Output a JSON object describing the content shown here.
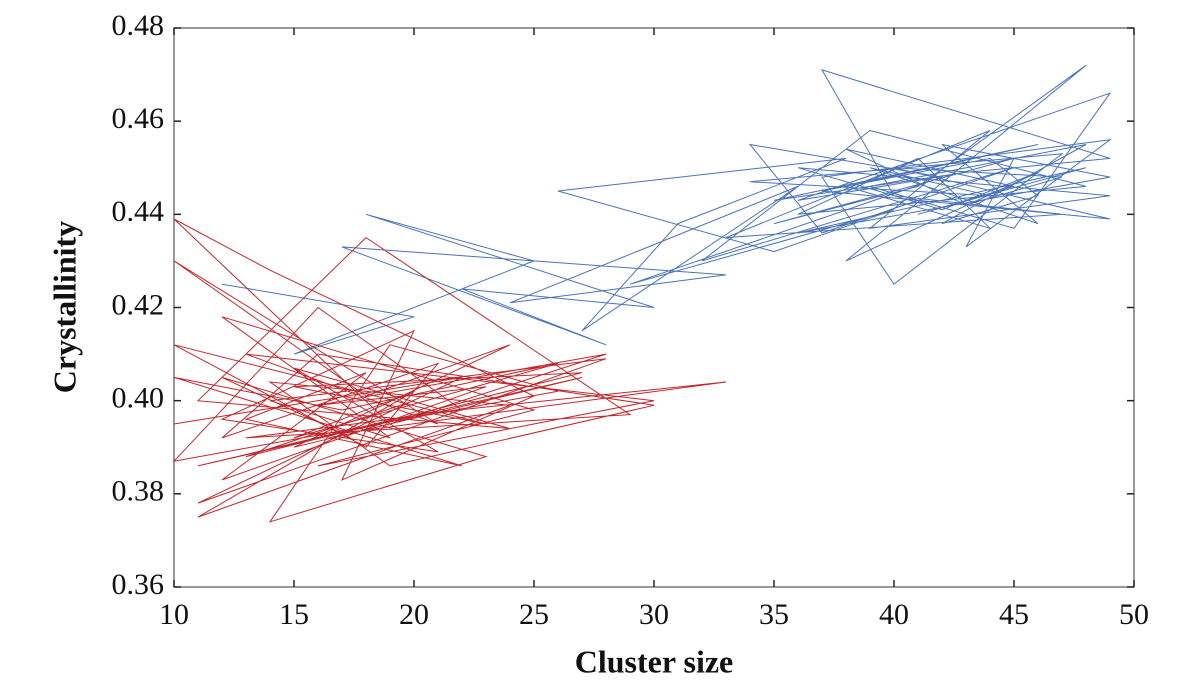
{
  "chart_data": {
    "type": "line",
    "x_label": "Cluster size",
    "y_label": "Crystallinity",
    "xlim": [
      10,
      50
    ],
    "ylim": [
      0.36,
      0.48
    ],
    "xticks": [
      10,
      15,
      20,
      25,
      30,
      35,
      40,
      45,
      50
    ],
    "yticks": [
      0.36,
      0.38,
      {
        "value": 0.4,
        "label": "0.40"
      },
      0.42,
      0.44,
      0.46,
      0.48
    ],
    "series": [
      {
        "color": "#4a73b8",
        "x": [
          12,
          20,
          15,
          25,
          18,
          30,
          22,
          28,
          17,
          33,
          24,
          36,
          27,
          31,
          38,
          26,
          35,
          40,
          29,
          42,
          34,
          37,
          45,
          32,
          39,
          48,
          36,
          41,
          44,
          38,
          46,
          35,
          43,
          49,
          37,
          40,
          47,
          33,
          44,
          39,
          49,
          36,
          42,
          46,
          38,
          48,
          41,
          35,
          45,
          43,
          49,
          37,
          40,
          47,
          34,
          44,
          39,
          46,
          42,
          49,
          36,
          48,
          41,
          45,
          38,
          43,
          47,
          40,
          49,
          37,
          44,
          46,
          42,
          48,
          39,
          45,
          49,
          36,
          43,
          47
        ],
        "values": [
          0.425,
          0.418,
          0.41,
          0.43,
          0.44,
          0.42,
          0.424,
          0.412,
          0.433,
          0.427,
          0.421,
          0.446,
          0.415,
          0.438,
          0.452,
          0.445,
          0.432,
          0.441,
          0.425,
          0.448,
          0.455,
          0.436,
          0.45,
          0.43,
          0.458,
          0.446,
          0.44,
          0.452,
          0.437,
          0.446,
          0.455,
          0.443,
          0.449,
          0.452,
          0.471,
          0.444,
          0.44,
          0.435,
          0.458,
          0.437,
          0.444,
          0.45,
          0.441,
          0.449,
          0.43,
          0.472,
          0.446,
          0.438,
          0.452,
          0.433,
          0.456,
          0.448,
          0.425,
          0.453,
          0.447,
          0.444,
          0.45,
          0.438,
          0.455,
          0.448,
          0.436,
          0.45,
          0.44,
          0.446,
          0.454,
          0.442,
          0.448,
          0.45,
          0.439,
          0.445,
          0.452,
          0.444,
          0.438,
          0.455,
          0.446,
          0.437,
          0.466,
          0.443,
          0.449,
          0.451
        ]
      },
      {
        "color": "#c0282d",
        "x": [
          10,
          22,
          11,
          28,
          14,
          19,
          12,
          25,
          16,
          30,
          13,
          21,
          10,
          18,
          24,
          15,
          27,
          11,
          20,
          33,
          17,
          12,
          23,
          14,
          19,
          26,
          10,
          16,
          22,
          13,
          29,
          18,
          11,
          24,
          15,
          21,
          12,
          20,
          17,
          25,
          14,
          10,
          19,
          28,
          16,
          23,
          12,
          18,
          13,
          22,
          10,
          17,
          26,
          15,
          20,
          11,
          24,
          14,
          19,
          30,
          16,
          12,
          21,
          18,
          10,
          23,
          15,
          27,
          13,
          20
        ],
        "values": [
          0.395,
          0.405,
          0.378,
          0.409,
          0.4,
          0.392,
          0.418,
          0.398,
          0.386,
          0.4,
          0.41,
          0.395,
          0.43,
          0.401,
          0.412,
          0.39,
          0.405,
          0.386,
          0.397,
          0.404,
          0.393,
          0.405,
          0.388,
          0.374,
          0.412,
          0.402,
          0.387,
          0.42,
          0.398,
          0.392,
          0.397,
          0.435,
          0.4,
          0.394,
          0.407,
          0.389,
          0.396,
          0.415,
          0.383,
          0.401,
          0.428,
          0.439,
          0.395,
          0.41,
          0.399,
          0.403,
          0.383,
          0.406,
          0.396,
          0.386,
          0.405,
          0.398,
          0.408,
          0.392,
          0.402,
          0.375,
          0.399,
          0.404,
          0.386,
          0.399,
          0.41,
          0.392,
          0.408,
          0.39,
          0.412,
          0.395,
          0.403,
          0.406,
          0.388,
          0.4
        ]
      }
    ]
  }
}
